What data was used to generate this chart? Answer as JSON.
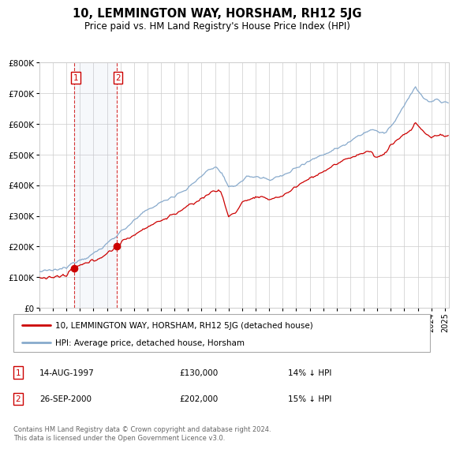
{
  "title": "10, LEMMINGTON WAY, HORSHAM, RH12 5JG",
  "subtitle": "Price paid vs. HM Land Registry's House Price Index (HPI)",
  "sale1_label": "14-AUG-1997",
  "sale1_price_str": "£130,000",
  "sale1_pct": "14% ↓ HPI",
  "sale2_label": "26-SEP-2000",
  "sale2_price_str": "£202,000",
  "sale2_pct": "15% ↓ HPI",
  "legend_line1": "10, LEMMINGTON WAY, HORSHAM, RH12 5JG (detached house)",
  "legend_line2": "HPI: Average price, detached house, Horsham",
  "footer": "Contains HM Land Registry data © Crown copyright and database right 2024.\nThis data is licensed under the Open Government Licence v3.0.",
  "red_color": "#cc0000",
  "blue_color": "#88aacc",
  "ylim_min": 0,
  "ylim_max": 800000,
  "sale1_t": 1997.583,
  "sale1_price": 130000,
  "sale2_t": 2000.708,
  "sale2_price": 202000
}
